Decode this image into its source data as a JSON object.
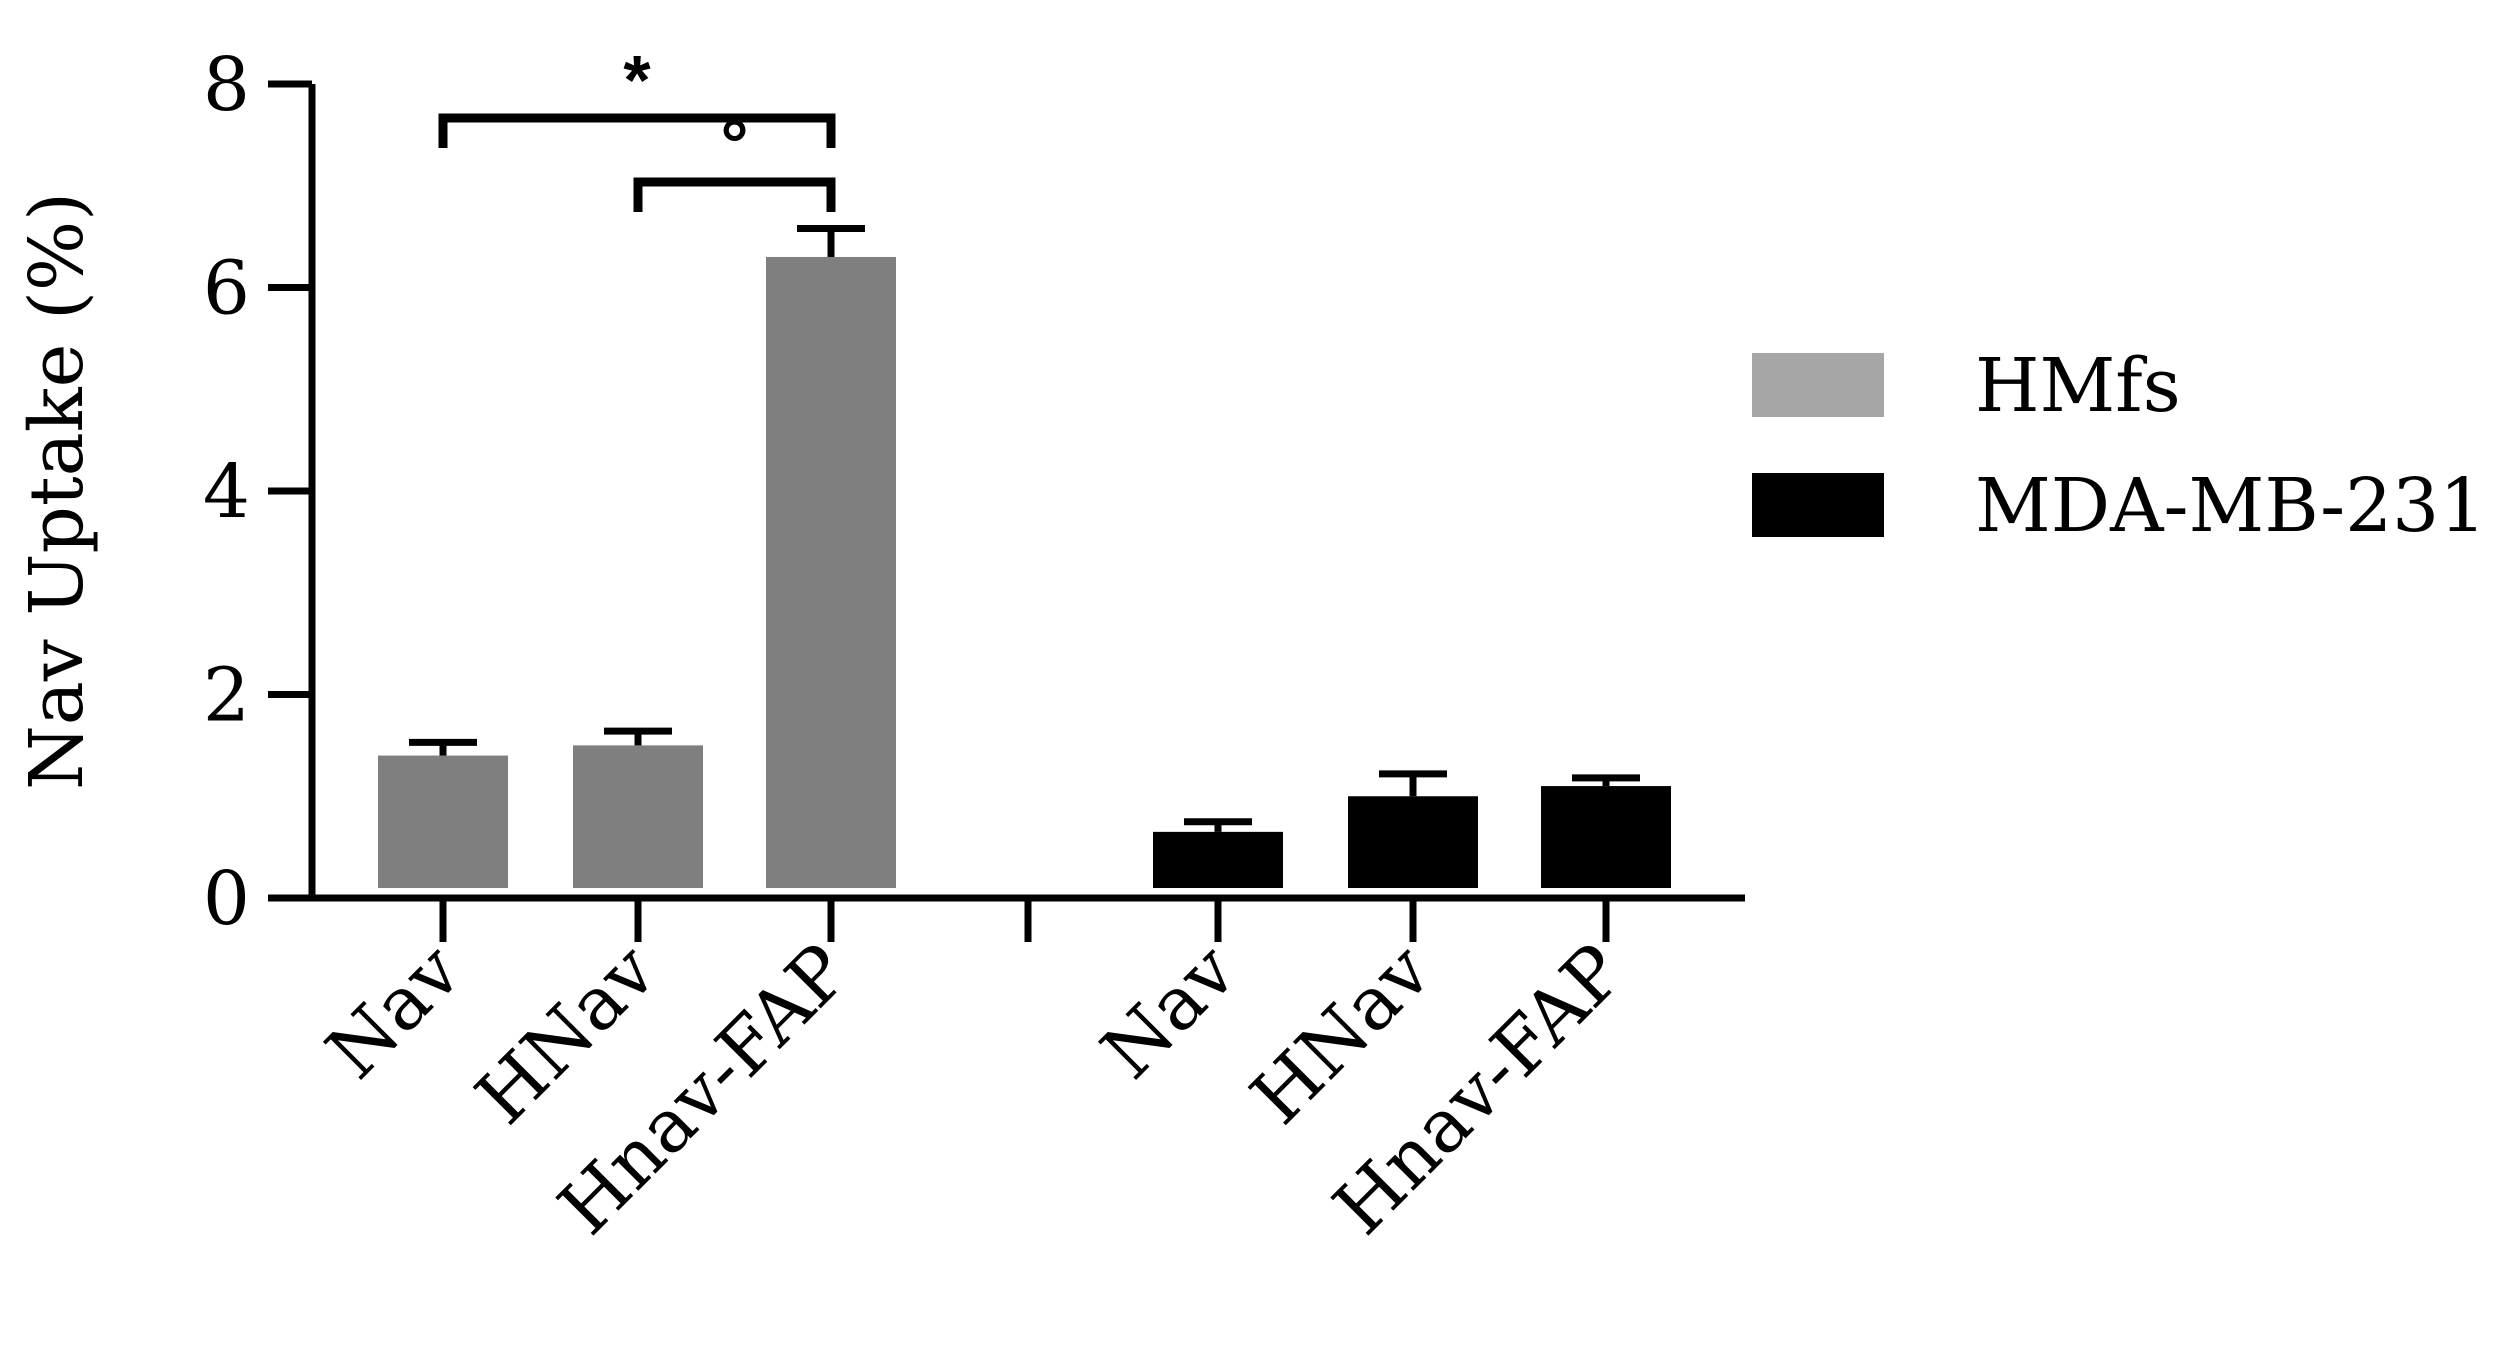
{
  "chart_data": {
    "type": "bar",
    "ylabel": "Nav Uptake (%)",
    "xlabel": "",
    "ylim": [
      0,
      8
    ],
    "yticks": [
      "0",
      "2",
      "4",
      "6",
      "8"
    ],
    "grid": false,
    "legend_position": "right",
    "groups": [
      {
        "name": "HMfs",
        "color": "#7f7f7f",
        "legend_color": "#a6a6a6",
        "categories": [
          "Nav",
          "HNav",
          "Hnav-FAP"
        ],
        "values": [
          1.4,
          1.5,
          6.3
        ],
        "errors": [
          0.13,
          0.14,
          0.28
        ]
      },
      {
        "name": "MDA-MB-231",
        "color": "#000000",
        "legend_color": "#000000",
        "categories": [
          "Nav",
          "HNav",
          "Hnav-FAP"
        ],
        "values": [
          0.65,
          1.0,
          1.1
        ],
        "errors": [
          0.1,
          0.22,
          0.08
        ]
      }
    ],
    "annotations": [
      {
        "label": "*",
        "from": [
          "HMfs",
          "Nav"
        ],
        "to": [
          "HMfs",
          "Hnav-FAP"
        ]
      },
      {
        "label": "°",
        "from": [
          "HMfs",
          "HNav"
        ],
        "to": [
          "HMfs",
          "Hnav-FAP"
        ]
      }
    ]
  }
}
